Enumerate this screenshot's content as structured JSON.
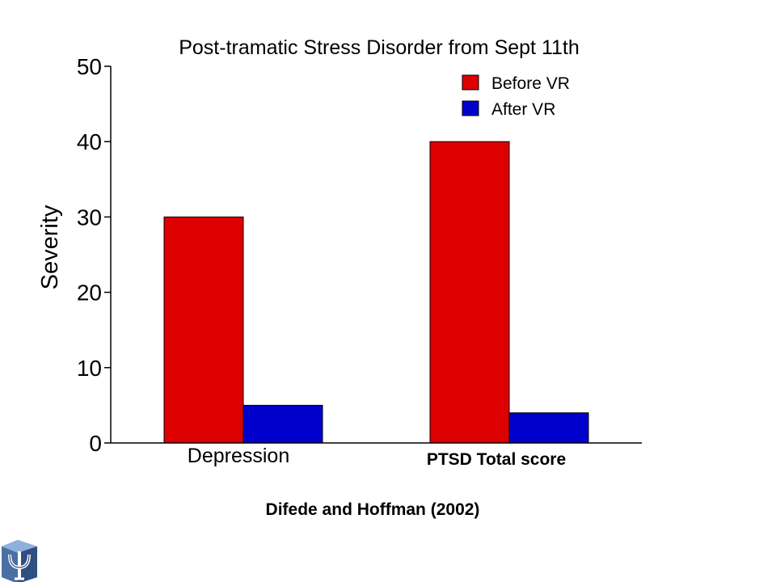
{
  "logo": {
    "icon": "psi-logo",
    "colors": [
      "#4a6fa5",
      "#8fb0d8",
      "#1a2f5a"
    ]
  },
  "colors": {
    "before": "#dd0000",
    "after": "#0000cc",
    "axis": "#000000",
    "bar_outline": "#000000"
  },
  "chart_data": {
    "type": "bar",
    "title": "Post-tramatic Stress Disorder from Sept 11th",
    "ylabel": "Severity",
    "xlabel": "",
    "ylim": [
      0,
      50
    ],
    "yticks": [
      "0",
      "10",
      "20",
      "30",
      "40",
      "50"
    ],
    "categories": [
      "Depression",
      "PTSD Total score"
    ],
    "series": [
      {
        "name": "Before VR",
        "values": [
          30,
          40
        ]
      },
      {
        "name": "After VR",
        "values": [
          5,
          4
        ]
      }
    ],
    "legend_position": "top-right",
    "grid": false,
    "citation": "Difede and Hoffman (2002)"
  }
}
